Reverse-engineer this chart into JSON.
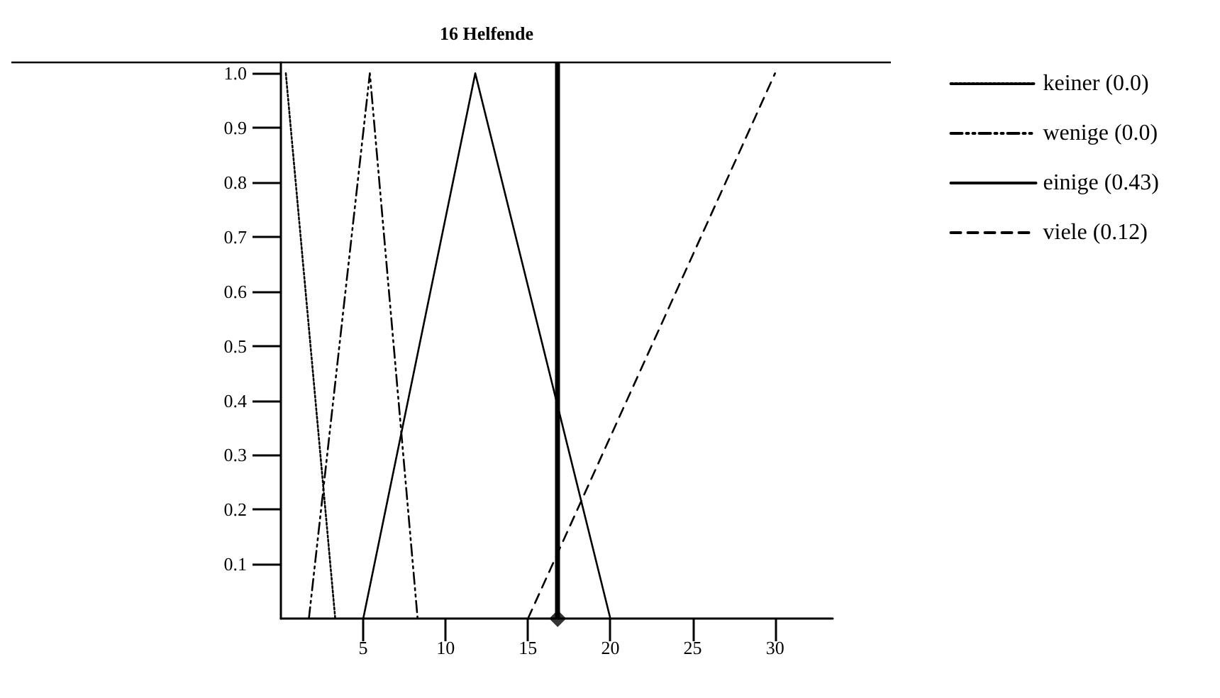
{
  "chart_data": {
    "type": "line",
    "title": "16 Helfende",
    "series": [
      {
        "name": "keiner (0.0)",
        "color": "#000000",
        "line_style": "dotted",
        "x": [
          0.3,
          3.3
        ],
        "values": [
          1,
          0
        ]
      },
      {
        "name": "wenige (0.0)",
        "color": "#000000",
        "line_style": "dashdot",
        "x": [
          1.7,
          5.4,
          8.3
        ],
        "values": [
          0,
          1,
          0
        ]
      },
      {
        "name": "einige (0.43)",
        "color": "#000000",
        "line_style": "solid",
        "x": [
          5,
          11.8,
          20
        ],
        "values": [
          0,
          1,
          0
        ]
      },
      {
        "name": "viele (0.12)",
        "color": "#000000",
        "line_style": "dashed",
        "x": [
          15,
          30
        ],
        "values": [
          0,
          1
        ]
      },
      {
        "type": "scatter",
        "color": "#000000",
        "marker": "diamond",
        "x": [
          16.8
        ],
        "values": [
          0
        ]
      }
    ],
    "ref_lines": [
      {
        "axis": "x",
        "value": 16.8,
        "color": "#000000"
      }
    ],
    "xlim": [
      0,
      33.5
    ],
    "xticks": [
      5,
      10,
      15,
      20,
      25,
      30
    ],
    "ylim": [
      0,
      1.02
    ],
    "yticks": [
      0.1,
      0.2,
      0.3,
      0.4,
      0.5,
      0.6,
      0.7,
      0.8,
      0.9,
      {
        "value": 1.0,
        "label": "1.0"
      }
    ],
    "grid": false,
    "legend": "top right",
    "marker": "none"
  }
}
